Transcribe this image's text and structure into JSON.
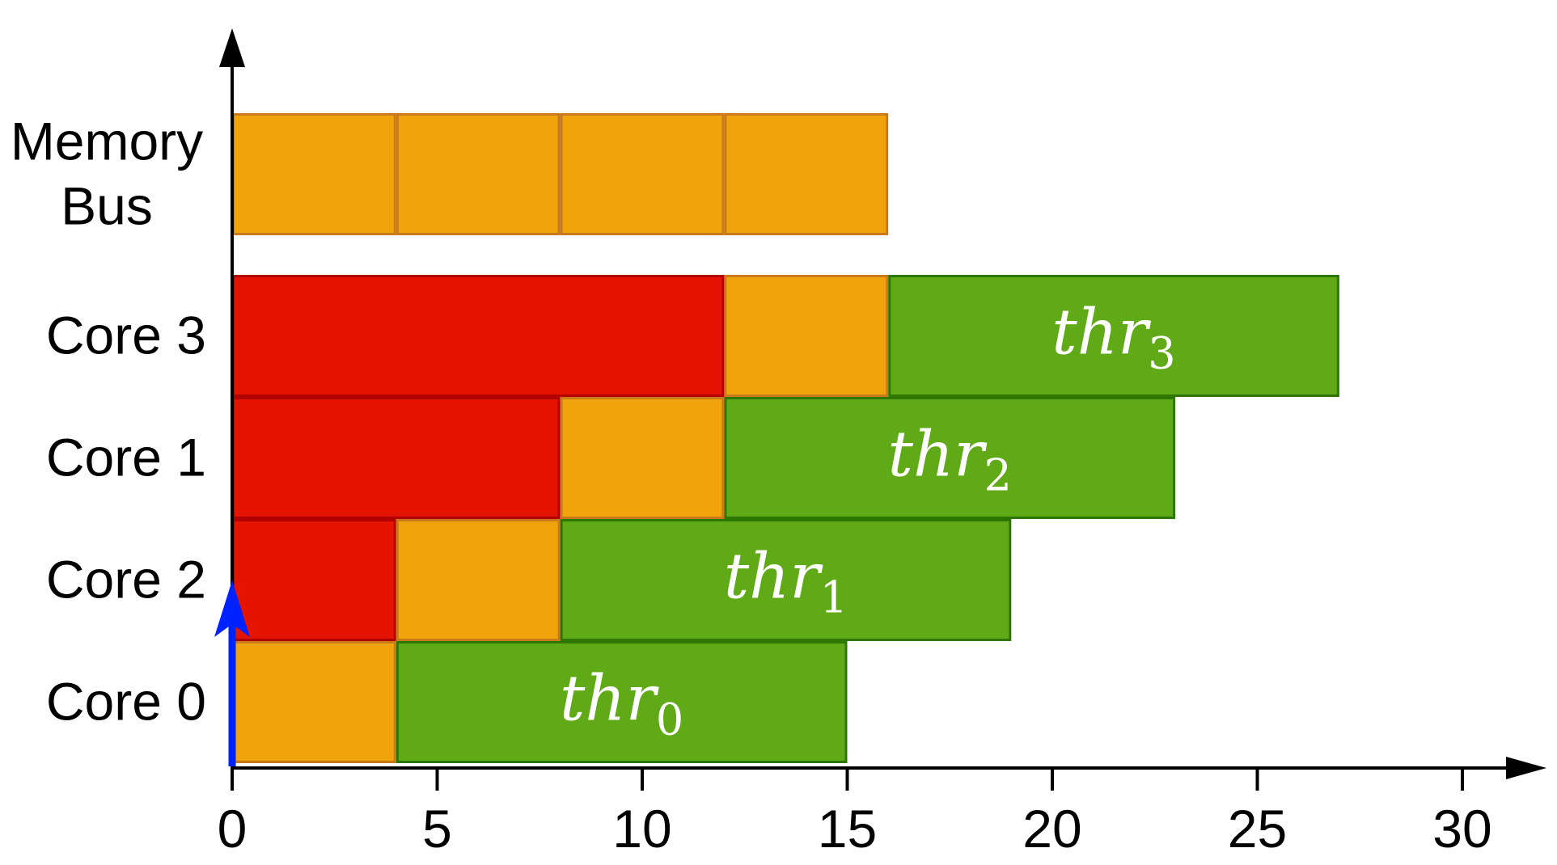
{
  "chart_data": {
    "type": "bar",
    "layout": "gantt",
    "xlim": [
      0,
      30
    ],
    "xticks": [
      "0",
      "5",
      "10",
      "15",
      "20",
      "25",
      "30"
    ],
    "lanes": [
      {
        "label_lines": [
          "Memory",
          "Bus"
        ],
        "segments": [
          {
            "start": 0,
            "end": 4,
            "kind": "memory"
          },
          {
            "start": 4,
            "end": 8,
            "kind": "memory"
          },
          {
            "start": 8,
            "end": 12,
            "kind": "memory"
          },
          {
            "start": 12,
            "end": 16,
            "kind": "memory"
          }
        ]
      },
      {
        "label_lines": [
          "Core 3"
        ],
        "segments": [
          {
            "start": 0,
            "end": 12,
            "kind": "wait"
          },
          {
            "start": 12,
            "end": 16,
            "kind": "memory"
          },
          {
            "start": 16,
            "end": 27,
            "kind": "compute",
            "label": "thr",
            "sub": "3"
          }
        ]
      },
      {
        "label_lines": [
          "Core 1"
        ],
        "segments": [
          {
            "start": 0,
            "end": 8,
            "kind": "wait"
          },
          {
            "start": 8,
            "end": 12,
            "kind": "memory"
          },
          {
            "start": 12,
            "end": 23,
            "kind": "compute",
            "label": "thr",
            "sub": "2"
          }
        ]
      },
      {
        "label_lines": [
          "Core 2"
        ],
        "segments": [
          {
            "start": 0,
            "end": 4,
            "kind": "wait"
          },
          {
            "start": 4,
            "end": 8,
            "kind": "memory"
          },
          {
            "start": 8,
            "end": 19,
            "kind": "compute",
            "label": "thr",
            "sub": "1"
          }
        ]
      },
      {
        "label_lines": [
          "Core 0"
        ],
        "segments": [
          {
            "start": 0,
            "end": 4,
            "kind": "memory"
          },
          {
            "start": 4,
            "end": 15,
            "kind": "compute",
            "label": "thr",
            "sub": "0"
          }
        ]
      }
    ],
    "colors": {
      "memory": "#F0A30A",
      "memory_border": "#C97B1C",
      "wait": "#E51400",
      "wait_border": "#B20000",
      "compute": "#60A917",
      "compute_border": "#2D7600",
      "axis": "#000000",
      "marker": "#0022FF"
    },
    "marker_x": 0
  }
}
